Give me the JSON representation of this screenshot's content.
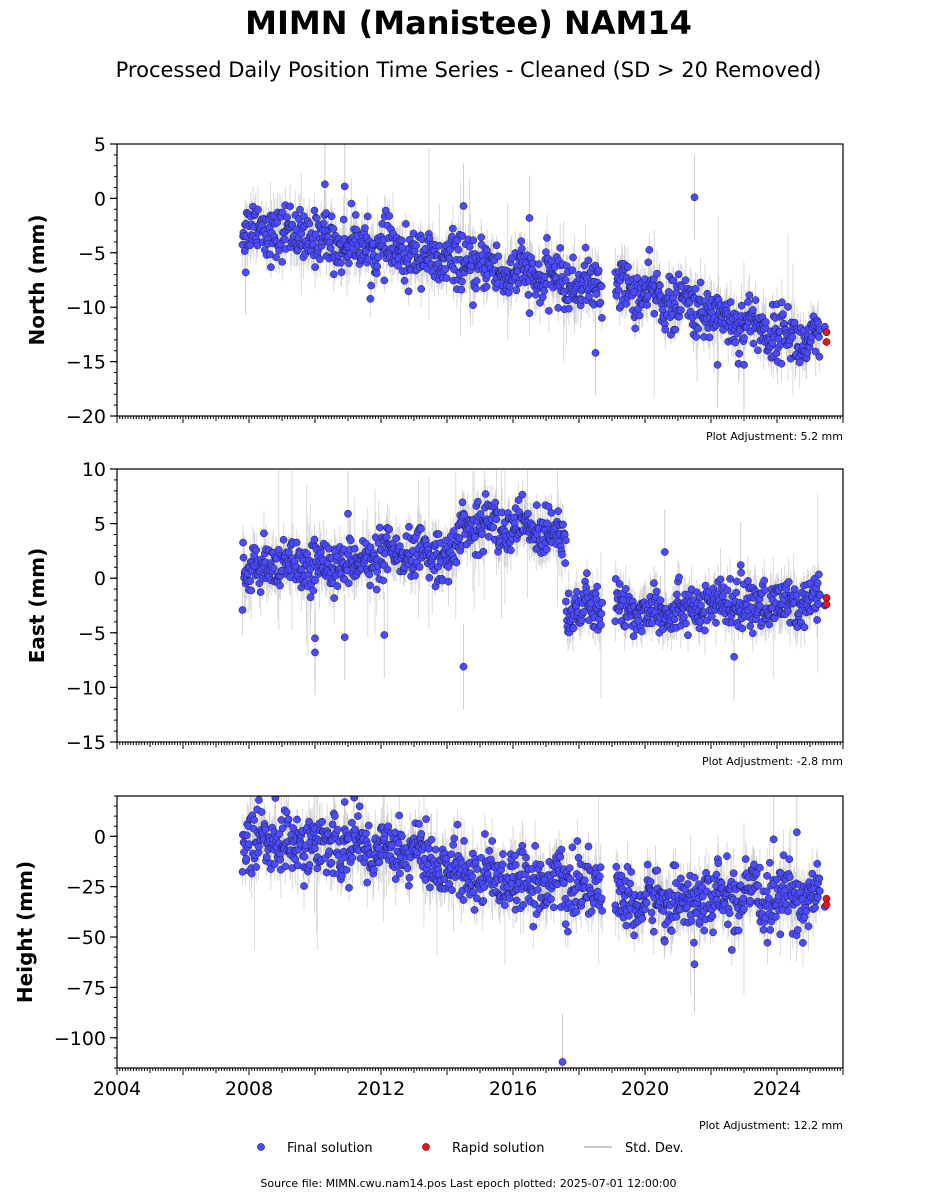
{
  "title": "MIMN (Manistee) NAM14",
  "subtitle": "Processed Daily Position Time Series - Cleaned (SD > 20 Removed)",
  "source_line": "Source file: MIMN.cwu.nam14.pos  Last epoch plotted: 2025-07-01 12:00:00",
  "legend": {
    "placement": "bottom-center",
    "items": [
      {
        "label": "Final solution",
        "color": "#4a4aff"
      },
      {
        "label": "Rapid solution",
        "color": "#e8141c"
      },
      {
        "label": "Std. Dev.",
        "color": "#bbbbbb"
      }
    ]
  },
  "chart_data": [
    {
      "type": "scatter",
      "ylabel": "North (mm)",
      "adjustment_label": "Plot Adjustment: 5.2 mm",
      "xlim": [
        2004,
        2026
      ],
      "ylim": [
        -20,
        5
      ],
      "yticks": [
        5,
        0,
        -5,
        -10,
        -15,
        -20
      ],
      "yticklabels": [
        "5",
        "0",
        "−5",
        "−10",
        "−15",
        "−20"
      ],
      "grid": false,
      "series": [
        {
          "name": "Final solution",
          "segments": [
            {
              "x_start": 2007.8,
              "x_end": 2018.7,
              "y_start": -2.5,
              "y_end": -8.3
            },
            {
              "x_start": 2019.1,
              "x_end": 2025.3,
              "y_start": -8.0,
              "y_end": -13.5
            }
          ],
          "scatter": 1.2,
          "sd": 1.3,
          "outliers": [
            [
              2007.9,
              -6.8
            ],
            [
              2010.3,
              1.3
            ],
            [
              2010.9,
              1.1
            ],
            [
              2014.5,
              -0.7
            ],
            [
              2016.5,
              -1.8
            ],
            [
              2018.5,
              -14.2
            ],
            [
              2021.5,
              0.1
            ],
            [
              2022.2,
              -15.3
            ],
            [
              2023.0,
              -15.3
            ]
          ]
        },
        {
          "name": "Rapid solution",
          "points": [
            [
              2025.45,
              -11.8
            ],
            [
              2025.5,
              -12.3
            ],
            [
              2025.5,
              -13.2
            ]
          ]
        }
      ]
    },
    {
      "type": "scatter",
      "ylabel": "East (mm)",
      "adjustment_label": "Plot Adjustment: -2.8 mm",
      "xlim": [
        2004,
        2026
      ],
      "ylim": [
        -15,
        10
      ],
      "yticks": [
        10,
        5,
        0,
        -5,
        -10,
        -15
      ],
      "yticklabels": [
        "10",
        "5",
        "0",
        "−5",
        "−10",
        "−15"
      ],
      "grid": false,
      "series": [
        {
          "name": "Final solution",
          "segments": [
            {
              "x_start": 2007.8,
              "x_end": 2014.4,
              "y_start": 0.5,
              "y_end": 2.5
            },
            {
              "x_start": 2014.4,
              "x_end": 2017.6,
              "y_start": 5.0,
              "y_end": 4.2
            },
            {
              "x_start": 2017.6,
              "x_end": 2018.7,
              "y_start": -2.8,
              "y_end": -3.0
            },
            {
              "x_start": 2019.1,
              "x_end": 2025.3,
              "y_start": -3.0,
              "y_end": -2.2
            }
          ],
          "scatter": 1.1,
          "sd": 1.3,
          "outliers": [
            [
              2010.0,
              -5.5
            ],
            [
              2010.0,
              -6.8
            ],
            [
              2010.9,
              -5.4
            ],
            [
              2011.0,
              5.9
            ],
            [
              2012.1,
              -5.2
            ],
            [
              2014.5,
              -8.1
            ],
            [
              2020.6,
              2.4
            ],
            [
              2022.7,
              -7.2
            ],
            [
              2022.9,
              1.2
            ]
          ]
        },
        {
          "name": "Rapid solution",
          "points": [
            [
              2025.45,
              -2.5
            ],
            [
              2025.5,
              -1.8
            ],
            [
              2025.5,
              -2.4
            ]
          ]
        }
      ]
    },
    {
      "type": "scatter",
      "ylabel": "Height (mm)",
      "adjustment_label": "Plot Adjustment: 12.2 mm",
      "xlim": [
        2004,
        2026
      ],
      "ylim": [
        -115,
        20
      ],
      "yticks": [
        0,
        -25,
        -50,
        -75,
        -100
      ],
      "yticklabels": [
        "0",
        "−25",
        "−50",
        "−75",
        "−100"
      ],
      "xticks": [
        2004,
        2008,
        2012,
        2016,
        2020,
        2024
      ],
      "xticklabels": [
        "2004",
        "2008",
        "2012",
        "2016",
        "2020",
        "2024"
      ],
      "grid": false,
      "series": [
        {
          "name": "Final solution",
          "segments": [
            {
              "x_start": 2007.8,
              "x_end": 2013.2,
              "y_start": -3.0,
              "y_end": -6.0
            },
            {
              "x_start": 2013.2,
              "x_end": 2018.7,
              "y_start": -14.0,
              "y_end": -27.0
            },
            {
              "x_start": 2019.1,
              "x_end": 2025.3,
              "y_start": -33.0,
              "y_end": -30.0
            }
          ],
          "scatter": 7.5,
          "sd": 8.0,
          "outliers": [
            [
              2008.3,
              18.0
            ],
            [
              2008.8,
              19.0
            ],
            [
              2010.9,
              17.0
            ],
            [
              2017.5,
              -112.0
            ],
            [
              2021.5,
              -63.5
            ],
            [
              2024.6,
              2.0
            ],
            [
              2023.9,
              -1.5
            ]
          ]
        },
        {
          "name": "Rapid solution",
          "points": [
            [
              2025.45,
              -35.0
            ],
            [
              2025.5,
              -31.0
            ],
            [
              2025.5,
              -34.0
            ]
          ]
        }
      ]
    }
  ]
}
